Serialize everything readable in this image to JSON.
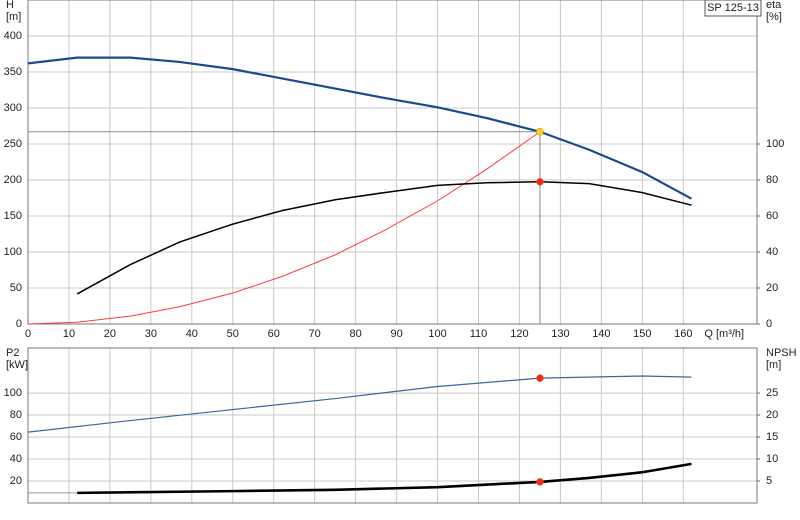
{
  "chart_data": [
    {
      "type": "line",
      "title": "SP 125-13",
      "ylabel": "H",
      "yunit": "[m]",
      "y2label": "eta",
      "y2unit": "[%]",
      "xlabel": "Q [m³/h]",
      "xlim": [
        0,
        178
      ],
      "xticks": [
        0,
        10,
        20,
        30,
        40,
        50,
        60,
        70,
        80,
        90,
        100,
        110,
        120,
        130,
        140,
        150,
        160
      ],
      "ylim": [
        0,
        450
      ],
      "yticks": [
        0,
        50,
        100,
        150,
        200,
        250,
        300,
        350,
        400
      ],
      "y2lim": [
        0,
        180
      ],
      "y2ticks": [
        0,
        20,
        40,
        60,
        80,
        100
      ],
      "grid": true,
      "series": [
        {
          "color": "#1b4a8c",
          "line_width": 2.2,
          "axis": "y",
          "x": [
            0,
            12,
            25,
            37,
            50,
            62,
            75,
            87,
            100,
            112,
            125,
            137,
            150,
            162
          ],
          "values": [
            362,
            370,
            370,
            364,
            354,
            341,
            327,
            314,
            301,
            286,
            267,
            242,
            211,
            174
          ]
        },
        {
          "color": "#ff3b3b",
          "line_width": 1,
          "axis": "y",
          "x": [
            0,
            12,
            25,
            37,
            50,
            62,
            75,
            87,
            100,
            112,
            125
          ],
          "values": [
            0,
            2.5,
            11,
            24,
            43,
            66,
            96,
            130,
            171,
            215,
            267
          ]
        },
        {
          "color": "#000000",
          "line_width": 1.5,
          "axis": "y2",
          "x": [
            12,
            25,
            37,
            50,
            62,
            75,
            87,
            100,
            112,
            125,
            137,
            150,
            162
          ],
          "values": [
            16.7,
            33,
            45.5,
            55.5,
            63,
            69,
            73,
            77,
            78.5,
            79,
            78,
            73,
            66
          ]
        }
      ],
      "points": [
        {
          "x": 125,
          "y": 267,
          "axis": "y",
          "color": "#ffd21a",
          "crosshair": true
        },
        {
          "x": 125,
          "y": 79,
          "axis": "y2",
          "color": "#ff2020"
        }
      ]
    },
    {
      "type": "line",
      "ylabel": "P2",
      "yunit": "[kW]",
      "y2label": "NPSH",
      "y2unit": "[m]",
      "xlim": [
        0,
        178
      ],
      "ylim": [
        0,
        141
      ],
      "yticks": [
        20,
        40,
        60,
        80,
        100
      ],
      "y2lim": [
        0,
        35.25
      ],
      "y2ticks": [
        5,
        10,
        15,
        20,
        25
      ],
      "grid": true,
      "series": [
        {
          "color": "#3a64a4",
          "line_width": 1.2,
          "axis": "y",
          "x": [
            0,
            25,
            50,
            75,
            100,
            125,
            150,
            162
          ],
          "values": [
            64.5,
            75,
            85,
            95,
            106,
            113.6,
            115.5,
            114.5
          ]
        },
        {
          "color": "#999999",
          "line_width": 1,
          "axis": "y2",
          "x": [
            0,
            12
          ],
          "values": [
            2.3,
            2.3
          ]
        },
        {
          "color": "#000000",
          "line_width": 2.6,
          "axis": "y2",
          "x": [
            12,
            50,
            75,
            100,
            125,
            137,
            150,
            162
          ],
          "values": [
            2.3,
            2.7,
            3,
            3.6,
            4.8,
            5.7,
            7,
            8.9
          ]
        }
      ],
      "points": [
        {
          "x": 125,
          "y": 113.6,
          "axis": "y",
          "color": "#ff2020"
        },
        {
          "x": 125,
          "y": 4.8,
          "axis": "y2",
          "color": "#ff2020"
        }
      ]
    }
  ]
}
